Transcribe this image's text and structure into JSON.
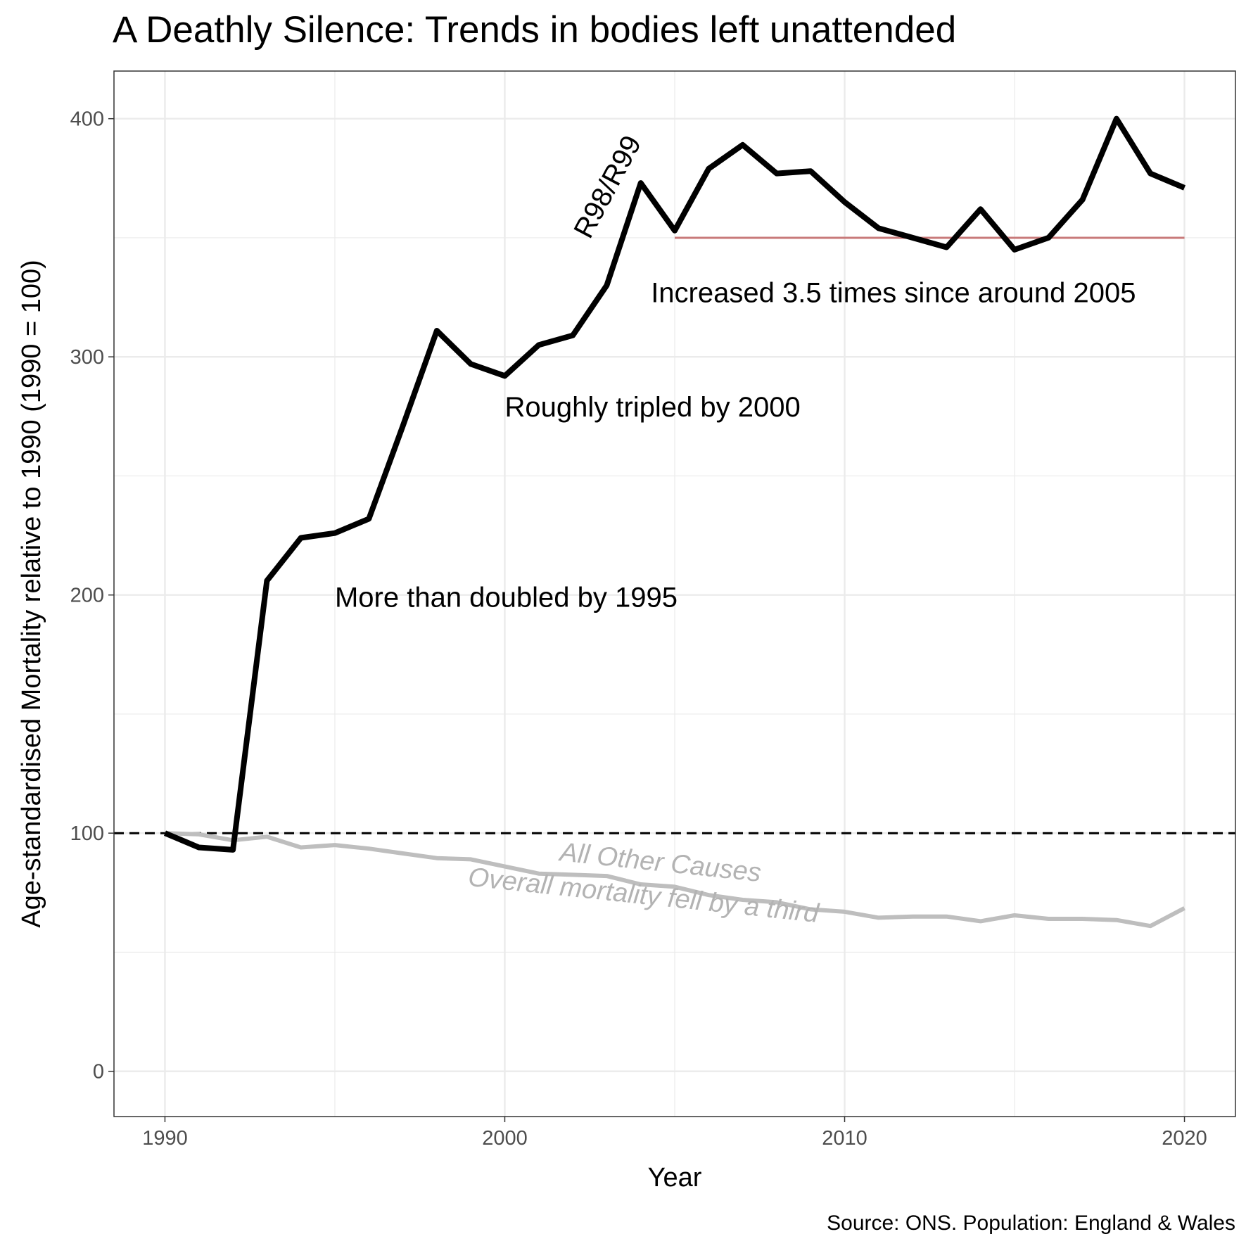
{
  "chart_data": {
    "type": "line",
    "title": "A Deathly Silence: Trends in bodies left unattended",
    "xlabel": "Year",
    "ylabel": "Age-standardised Mortality relative to 1990 (1990 = 100)",
    "caption": "Source: ONS. Population: England & Wales",
    "xlim": [
      1988.5,
      2021.5
    ],
    "ylim": [
      -19,
      420
    ],
    "x_ticks": [
      1990,
      2000,
      2010,
      2020
    ],
    "y_ticks": [
      0,
      100,
      200,
      300,
      400
    ],
    "grid": true,
    "reference_line": {
      "y": 100,
      "style": "dashed",
      "color": "#000000"
    },
    "x": [
      1990,
      1991,
      1992,
      1993,
      1994,
      1995,
      1996,
      1997,
      1998,
      1999,
      2000,
      2001,
      2002,
      2003,
      2004,
      2005,
      2006,
      2007,
      2008,
      2009,
      2010,
      2011,
      2012,
      2013,
      2014,
      2015,
      2016,
      2017,
      2018,
      2019,
      2020
    ],
    "series": [
      {
        "color": "#000000",
        "values": [
          100,
          94,
          93,
          206,
          224,
          226,
          232,
          271,
          311,
          297,
          292,
          305,
          309,
          330,
          373,
          353,
          379,
          389,
          377,
          378,
          365,
          354,
          350,
          346,
          362,
          345,
          350,
          366,
          400,
          377,
          371
        ]
      },
      {
        "color": "#bebebe",
        "values": [
          100,
          99.5,
          97,
          98.5,
          94,
          95,
          93.5,
          91.5,
          89.5,
          89,
          86,
          83,
          82.5,
          82,
          78.5,
          77.5,
          74,
          72,
          71,
          68,
          67,
          64.5,
          65,
          65,
          63,
          65.5,
          64,
          64,
          63.5,
          61,
          68.5
        ]
      }
    ],
    "segment": {
      "x": [
        2005,
        2020
      ],
      "y": 350,
      "color": "#c87a7a"
    },
    "annotations": [
      {
        "text": "R98/R99",
        "x": 2002.5,
        "y": 349,
        "angle": -62,
        "color": "#000000"
      },
      {
        "text": "Increased 3.5 times since around 2005",
        "x": 2004.3,
        "y": 323,
        "color": "#000000"
      },
      {
        "text": "Roughly tripled by 2000",
        "x": 2000.0,
        "y": 275,
        "color": "#000000"
      },
      {
        "text": "More than doubled by 1995",
        "x": 1995.0,
        "y": 195,
        "color": "#000000"
      },
      {
        "text": "All Other Causes",
        "x": 2001.6,
        "y": 88.5,
        "angle": 6,
        "color": "#b3b3b3"
      },
      {
        "text": "Overall mortality fell by a third",
        "x": 1998.9,
        "y": 78,
        "angle": 6,
        "color": "#b3b3b3"
      }
    ]
  }
}
